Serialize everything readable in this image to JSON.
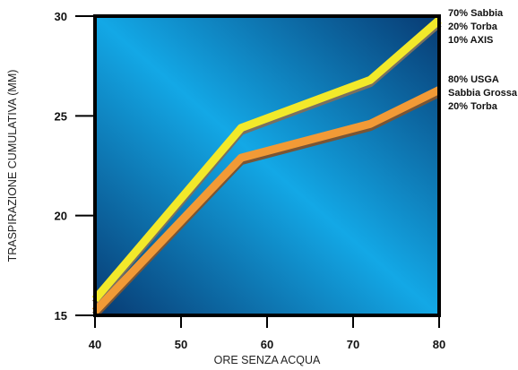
{
  "chart_data": {
    "type": "line",
    "xlabel": "ORE SENZA ACQUA",
    "ylabel": "TRASPIRAZIONE CUMULATIVA (MM)",
    "xlim": [
      40,
      80
    ],
    "ylim": [
      15,
      30
    ],
    "xticks": [
      "40",
      "50",
      "60",
      "70",
      "80"
    ],
    "yticks": [
      "15",
      "20",
      "25",
      "30"
    ],
    "grid": false,
    "legend_placement": "right",
    "series": [
      {
        "name": "70% Sabbia 20% Torba 10% AXIS",
        "legend_lines": [
          "70% Sabbia",
          "20% Torba",
          "10% AXIS"
        ],
        "color": "#f2e92a",
        "shadow_color": "#7a7060",
        "x": [
          40,
          57,
          72,
          80
        ],
        "y": [
          15.8,
          24.4,
          26.8,
          29.8
        ]
      },
      {
        "name": "80% USGA Sabbia Grossa 20% Torba",
        "legend_lines": [
          "80% USGA",
          "Sabbia Grossa",
          "20% Torba"
        ],
        "color": "#f29a36",
        "shadow_color": "#7a5535",
        "x": [
          40,
          57,
          72,
          80
        ],
        "y": [
          15.2,
          22.9,
          24.6,
          26.3
        ]
      }
    ]
  },
  "colors": {
    "plot_bg_dark": "#083a72",
    "plot_bg_light": "#13a8e6",
    "frame": "#000000"
  }
}
